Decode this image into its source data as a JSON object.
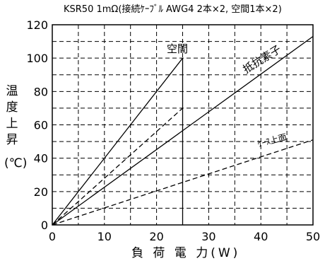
{
  "chart_data": {
    "type": "line",
    "title": "KSR50 1mΩ(接続ｹｰﾌﾞﾙ AWG4  2本×2,  空間1本×2)",
    "xlabel": "負 荷 電 力(W)",
    "ylabel_chars": [
      "温",
      "度",
      "上",
      "昇",
      "(℃)"
    ],
    "xlim": [
      0,
      50
    ],
    "ylim": [
      0,
      120
    ],
    "x_ticks": [
      0,
      10,
      20,
      30,
      40,
      50
    ],
    "y_ticks": [
      0,
      20,
      40,
      60,
      80,
      100,
      120
    ],
    "grid": true,
    "series": [
      {
        "name": "空間",
        "style": "solid",
        "x": [
          0,
          25
        ],
        "y": [
          0,
          100
        ]
      },
      {
        "name": "",
        "style": "dashed",
        "x": [
          0,
          25
        ],
        "y": [
          0,
          70
        ]
      },
      {
        "name": "抵抗素子",
        "style": "solid",
        "x": [
          0,
          50
        ],
        "y": [
          0,
          113
        ]
      },
      {
        "name": "ｹｰｽ上面",
        "style": "dashed",
        "x": [
          0,
          50
        ],
        "y": [
          0,
          51
        ]
      }
    ],
    "vline_x": 25
  }
}
